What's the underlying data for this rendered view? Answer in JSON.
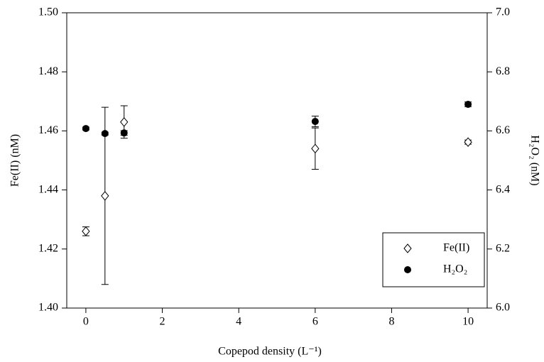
{
  "chart_data": {
    "type": "scatter",
    "x_label": "Copepod density (L⁻¹)",
    "y_label": "Fe(II) (nM)",
    "y2_label": "H₂O₂ (nM)",
    "x": [
      0,
      0.5,
      1,
      6,
      10
    ],
    "xlim": [
      -0.5,
      10.5
    ],
    "xticks": [
      0,
      2,
      4,
      6,
      8,
      10
    ],
    "ylim": [
      1.4,
      1.5
    ],
    "yticks": [
      {
        "value": 1.4,
        "label": "1.40"
      },
      {
        "value": 1.42,
        "label": "1.42"
      },
      {
        "value": 1.44,
        "label": "1.44"
      },
      {
        "value": 1.46,
        "label": "1.46"
      },
      {
        "value": 1.48,
        "label": "1.48"
      },
      {
        "value": 1.5,
        "label": "1.50"
      }
    ],
    "y2lim": [
      6,
      7
    ],
    "y2ticks": [
      {
        "value": 6,
        "label": "6.0"
      },
      {
        "value": 6.2,
        "label": "6.2"
      },
      {
        "value": 6.4,
        "label": "6.4"
      },
      {
        "value": 6.6,
        "label": "6.6"
      },
      {
        "value": 6.8,
        "label": "6.8"
      },
      {
        "value": 7,
        "label": "7.0"
      }
    ],
    "legend": "lower right",
    "series": [
      {
        "name": "Fe(II)",
        "color": "#000000",
        "marker": "open-diamond",
        "values": [
          1.426,
          1.438,
          1.463,
          1.454,
          1.4562
        ],
        "errors": [
          0.0015,
          0.03,
          0.0055,
          0.007,
          0.0007
        ]
      },
      {
        "name": "H₂O₂",
        "color": "#000000",
        "marker": "filled-circle",
        "axis": "y2",
        "values": [
          6.608,
          6.591,
          6.593,
          6.632,
          6.69
        ],
        "errors": [
          0.005,
          0.005,
          0.008,
          0.018,
          0.008
        ]
      }
    ]
  }
}
